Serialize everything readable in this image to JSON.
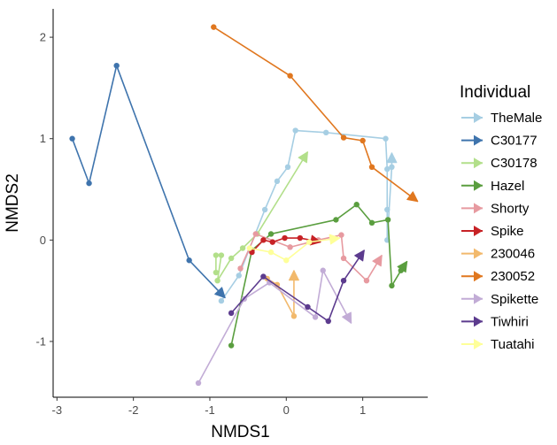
{
  "chart_data": {
    "type": "line",
    "xlabel": "NMDS1",
    "ylabel": "NMDS2",
    "xlim": [
      -3.05,
      1.85
    ],
    "ylim": [
      -1.55,
      2.28
    ],
    "xticks": [
      -3,
      -2,
      -1,
      0,
      1
    ],
    "yticks": [
      -1,
      0,
      1,
      2
    ],
    "grid": false,
    "legend_title": "Individual",
    "legend_position": "right",
    "series": [
      {
        "name": "TheMale",
        "color": "#a6cee3",
        "points": [
          [
            -0.85,
            -0.6
          ],
          [
            -0.62,
            -0.35
          ],
          [
            -0.28,
            0.3
          ],
          [
            -0.12,
            0.58
          ],
          [
            0.02,
            0.72
          ],
          [
            0.12,
            1.08
          ],
          [
            0.52,
            1.06
          ],
          [
            1.3,
            1.0
          ],
          [
            1.32,
            0.7
          ],
          [
            1.32,
            0.3
          ],
          [
            1.32,
            0.0
          ],
          [
            1.38,
            0.72
          ],
          [
            1.38,
            0.86
          ]
        ]
      },
      {
        "name": "C30177",
        "color": "#3f74ad",
        "points": [
          [
            -2.8,
            1.0
          ],
          [
            -2.58,
            0.56
          ],
          [
            -2.22,
            1.72
          ],
          [
            -1.27,
            -0.2
          ],
          [
            -0.8,
            -0.57
          ]
        ]
      },
      {
        "name": "C30178",
        "color": "#b2df8a",
        "points": [
          [
            -0.92,
            -0.32
          ],
          [
            -0.92,
            -0.15
          ],
          [
            -0.85,
            -0.15
          ],
          [
            -0.9,
            -0.4
          ],
          [
            -0.72,
            -0.18
          ],
          [
            -0.57,
            -0.08
          ],
          [
            -0.38,
            0.06
          ],
          [
            0.28,
            0.87
          ]
        ]
      },
      {
        "name": "Hazel",
        "color": "#5a9e3f",
        "points": [
          [
            -0.72,
            -1.04
          ],
          [
            -0.45,
            -0.1
          ],
          [
            -0.2,
            0.06
          ],
          [
            0.65,
            0.2
          ],
          [
            0.92,
            0.35
          ],
          [
            1.12,
            0.17
          ],
          [
            1.33,
            0.2
          ],
          [
            1.38,
            -0.45
          ],
          [
            1.5,
            -0.3
          ],
          [
            1.58,
            -0.21
          ]
        ]
      },
      {
        "name": "Shorty",
        "color": "#e79aa0",
        "points": [
          [
            -0.6,
            -0.28
          ],
          [
            -0.4,
            0.06
          ],
          [
            0.05,
            -0.07
          ],
          [
            0.42,
            0.0
          ],
          [
            0.72,
            0.05
          ],
          [
            0.75,
            -0.18
          ],
          [
            1.05,
            -0.4
          ],
          [
            1.25,
            -0.15
          ]
        ]
      },
      {
        "name": "Spike",
        "color": "#c72226",
        "points": [
          [
            -0.45,
            -0.12
          ],
          [
            -0.3,
            0.0
          ],
          [
            -0.18,
            -0.02
          ],
          [
            -0.02,
            0.02
          ],
          [
            0.18,
            0.02
          ],
          [
            0.45,
            -0.02
          ]
        ]
      },
      {
        "name": "230046",
        "color": "#f2b96c",
        "points": [
          [
            -0.25,
            -0.38
          ],
          [
            -0.12,
            -0.44
          ],
          [
            0.1,
            -0.75
          ],
          [
            0.1,
            -0.3
          ]
        ]
      },
      {
        "name": "230052",
        "color": "#e0771f",
        "points": [
          [
            -0.95,
            2.1
          ],
          [
            0.05,
            1.62
          ],
          [
            0.75,
            1.01
          ],
          [
            1.0,
            0.98
          ],
          [
            1.12,
            0.72
          ],
          [
            1.72,
            0.38
          ]
        ]
      },
      {
        "name": "Spikette",
        "color": "#c2acd6",
        "points": [
          [
            -1.15,
            -1.41
          ],
          [
            -0.55,
            -0.58
          ],
          [
            -0.22,
            -0.42
          ],
          [
            0.38,
            -0.76
          ],
          [
            0.48,
            -0.3
          ],
          [
            0.85,
            -0.82
          ]
        ]
      },
      {
        "name": "Tiwhiri",
        "color": "#5c3b8e",
        "points": [
          [
            -0.72,
            -0.72
          ],
          [
            -0.3,
            -0.36
          ],
          [
            0.28,
            -0.66
          ],
          [
            0.55,
            -0.8
          ],
          [
            0.75,
            -0.4
          ],
          [
            1.02,
            -0.1
          ]
        ]
      },
      {
        "name": "Tuatahi",
        "color": "#feff99",
        "points": [
          [
            -0.48,
            -0.08
          ],
          [
            -0.2,
            -0.12
          ],
          [
            0.0,
            -0.2
          ],
          [
            0.3,
            -0.02
          ],
          [
            0.7,
            0.02
          ]
        ]
      }
    ]
  }
}
